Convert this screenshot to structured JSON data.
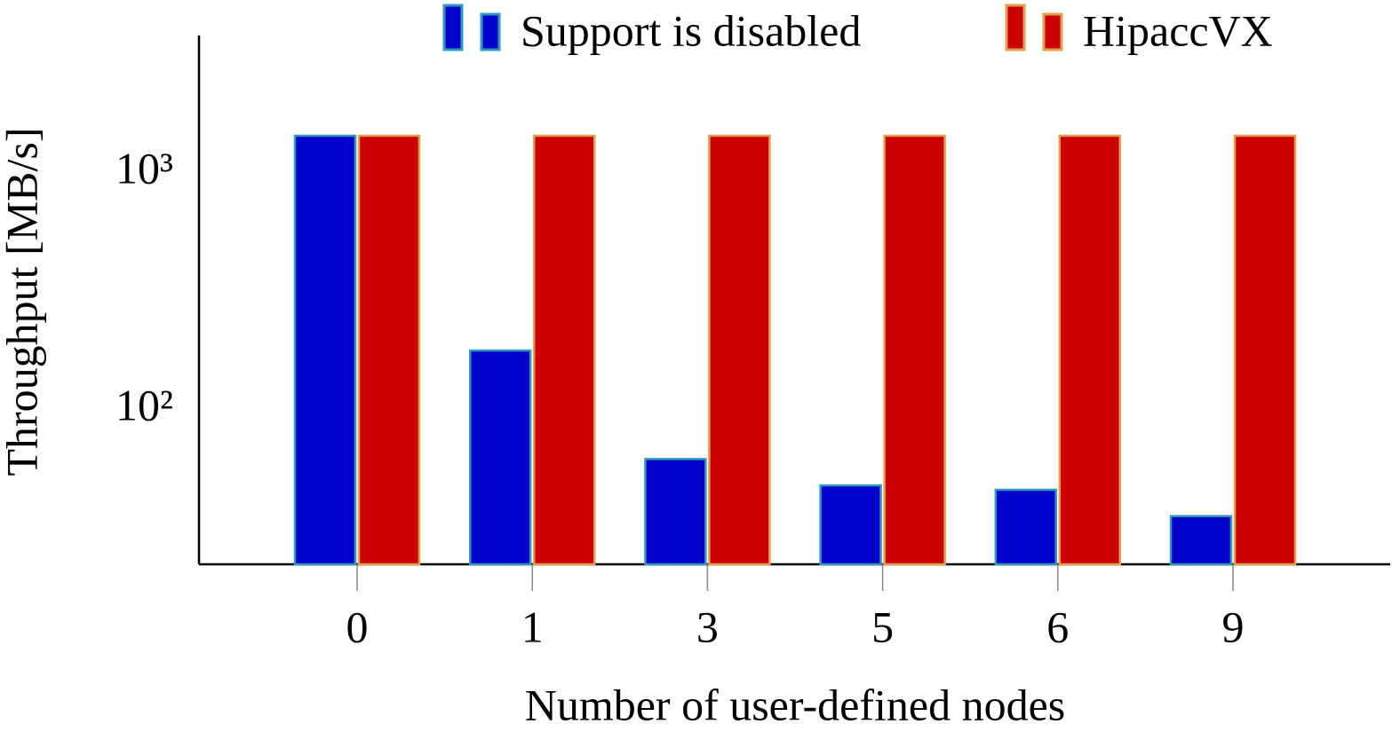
{
  "chart_data": {
    "type": "bar",
    "x_label": "Number of user-defined nodes",
    "y_label": "Throughput [MB/s]",
    "categories": [
      "0",
      "1",
      "3",
      "5",
      "6",
      "9"
    ],
    "series": [
      {
        "name": "Support is disabled",
        "color": "#0000cc",
        "edge": "#3399bb",
        "values": [
          1435,
          178,
          62,
          48,
          46,
          35.6
        ]
      },
      {
        "name": "HipaccVX",
        "color": "#cc0000",
        "edge": "#e0a050",
        "values": [
          1435,
          1435,
          1435,
          1435,
          1435,
          1435
        ]
      }
    ],
    "ylim": [
      22.3,
      3800
    ],
    "yticks": [
      {
        "value": 100,
        "label": "10²"
      },
      {
        "value": 1000,
        "label": "10³"
      }
    ],
    "log_scale": "y",
    "grid": false,
    "legend": "top"
  }
}
